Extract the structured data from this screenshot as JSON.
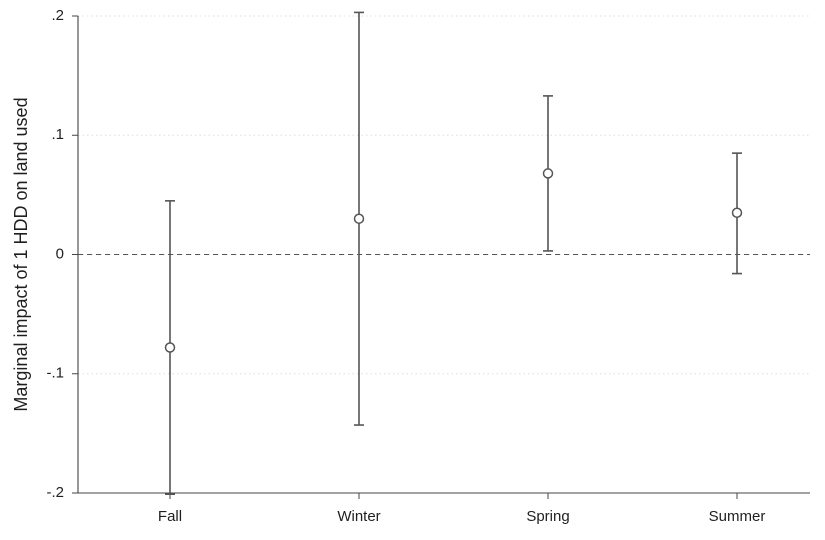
{
  "chart_data": {
    "type": "scatter",
    "title": "",
    "xlabel": "",
    "ylabel": "Marginal impact of 1 HDD on land used",
    "categories": [
      "Fall",
      "Winter",
      "Spring",
      "Summer"
    ],
    "points": [
      {
        "category": "Fall",
        "estimate": -0.078,
        "ci_low": -0.201,
        "ci_high": 0.045
      },
      {
        "category": "Winter",
        "estimate": 0.03,
        "ci_low": -0.143,
        "ci_high": 0.203
      },
      {
        "category": "Spring",
        "estimate": 0.068,
        "ci_low": 0.003,
        "ci_high": 0.133
      },
      {
        "category": "Summer",
        "estimate": 0.035,
        "ci_low": -0.016,
        "ci_high": 0.085
      }
    ],
    "y_ticks": [
      -0.2,
      -0.1,
      0,
      0.1,
      0.2
    ],
    "y_tick_labels": [
      "-.2",
      "-.1",
      "0",
      ".1",
      ".2"
    ],
    "ylim": [
      -0.2,
      0.2
    ],
    "reference_line": 0,
    "grid": true,
    "marker": "hollow-circle",
    "colors": {
      "marker": "#555555",
      "error_bar": "#555555",
      "grid": "#dddddd",
      "reference_line": "#555555",
      "axis": "#444444",
      "text": "#1f1f1f"
    }
  }
}
